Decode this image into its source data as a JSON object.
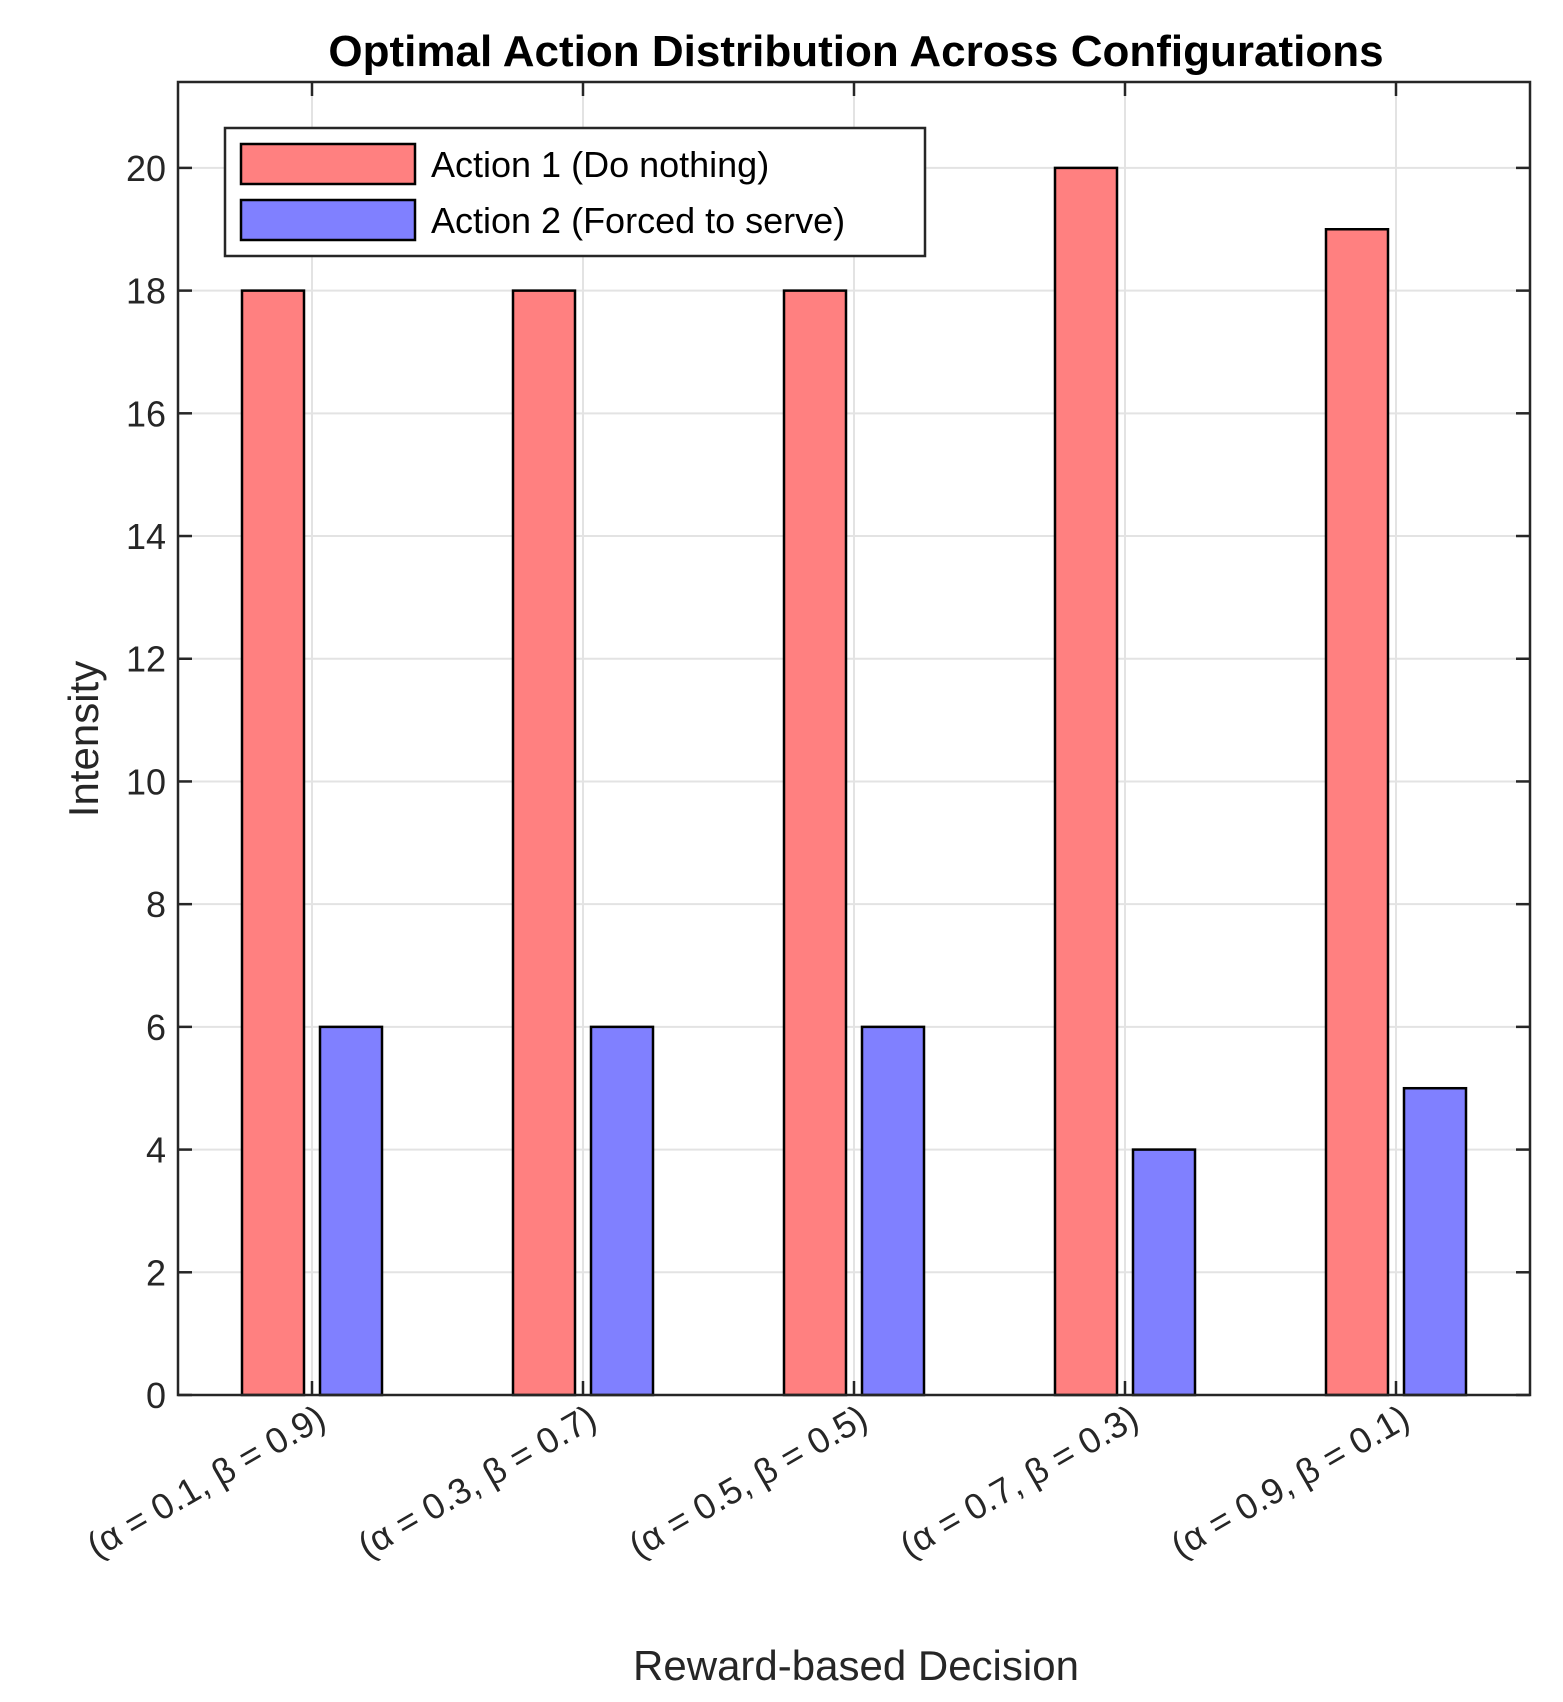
{
  "chart_data": {
    "type": "bar",
    "title": "Optimal Action Distribution Across Configurations",
    "xlabel": "Reward-based Decision",
    "ylabel": "Intensity",
    "categories": [
      "(α = 0.1, β = 0.9)",
      "(α = 0.3, β = 0.7)",
      "(α = 0.5, β = 0.5)",
      "(α = 0.7, β = 0.3)",
      "(α = 0.9, β = 0.1)"
    ],
    "series": [
      {
        "name": "Action 1 (Do nothing)",
        "values": [
          18,
          18,
          18,
          20,
          19
        ],
        "color": "#ff8080"
      },
      {
        "name": "Action 2 (Forced to serve)",
        "values": [
          6,
          6,
          6,
          4,
          5
        ],
        "color": "#8080ff"
      }
    ],
    "ylim": [
      0,
      21.4
    ],
    "yticks": [
      0,
      2,
      4,
      6,
      8,
      10,
      12,
      14,
      16,
      18,
      20
    ],
    "grid": true,
    "legend_position": "top-left"
  }
}
